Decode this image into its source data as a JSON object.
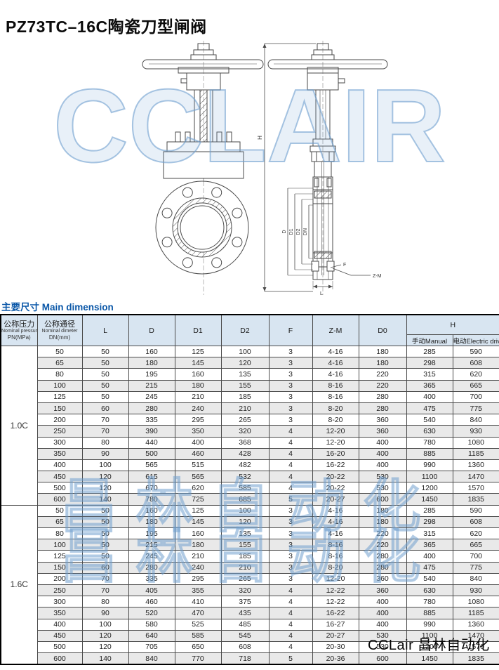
{
  "page": {
    "title": "PZ73TC–16C陶瓷刀型闸阀"
  },
  "watermarks": {
    "drawing": "CCLAIR",
    "table_line": "昌林自动化",
    "corner": "CCLair 昌林自动化"
  },
  "section": {
    "title_zh": "主要尺寸",
    "title_en": "Main dimension"
  },
  "drawing": {
    "labels": {
      "h": "H",
      "d": "D",
      "d1": "D1",
      "d2": "D2",
      "dn": "DN",
      "f": "F",
      "zm": "Z-M",
      "l": "L"
    }
  },
  "table": {
    "headers": {
      "pn_zh": "公称压力",
      "pn_en": "Nominal pressure",
      "pn_unit": "PN(MPa)",
      "dn_zh": "公称通径",
      "dn_en": "Nominal dimeter",
      "dn_unit": "DN(mm)",
      "l": "L",
      "d": "D",
      "d1": "D1",
      "d2": "D2",
      "f": "F",
      "zm": "Z-M",
      "d0": "D0",
      "h": "H",
      "h_manual": "手动Manual",
      "h_electric": "电动Electric driving"
    },
    "groups": [
      {
        "pn": "1.0C",
        "rows": [
          [
            "50",
            "50",
            "160",
            "125",
            "100",
            "3",
            "4-16",
            "180",
            "285",
            "590"
          ],
          [
            "65",
            "50",
            "180",
            "145",
            "120",
            "3",
            "4-16",
            "180",
            "298",
            "608"
          ],
          [
            "80",
            "50",
            "195",
            "160",
            "135",
            "3",
            "4-16",
            "220",
            "315",
            "620"
          ],
          [
            "100",
            "50",
            "215",
            "180",
            "155",
            "3",
            "8-16",
            "220",
            "365",
            "665"
          ],
          [
            "125",
            "50",
            "245",
            "210",
            "185",
            "3",
            "8-16",
            "280",
            "400",
            "700"
          ],
          [
            "150",
            "60",
            "280",
            "240",
            "210",
            "3",
            "8-20",
            "280",
            "475",
            "775"
          ],
          [
            "200",
            "70",
            "335",
            "295",
            "265",
            "3",
            "8-20",
            "360",
            "540",
            "840"
          ],
          [
            "250",
            "70",
            "390",
            "350",
            "320",
            "4",
            "12-20",
            "360",
            "630",
            "930"
          ],
          [
            "300",
            "80",
            "440",
            "400",
            "368",
            "4",
            "12-20",
            "400",
            "780",
            "1080"
          ],
          [
            "350",
            "90",
            "500",
            "460",
            "428",
            "4",
            "16-20",
            "400",
            "885",
            "1185"
          ],
          [
            "400",
            "100",
            "565",
            "515",
            "482",
            "4",
            "16-22",
            "400",
            "990",
            "1360"
          ],
          [
            "450",
            "120",
            "615",
            "565",
            "532",
            "4",
            "20-22",
            "530",
            "1100",
            "1470"
          ],
          [
            "500",
            "120",
            "670",
            "620",
            "585",
            "4",
            "20-22",
            "530",
            "1200",
            "1570"
          ],
          [
            "600",
            "140",
            "780",
            "725",
            "685",
            "5",
            "20-27",
            "600",
            "1450",
            "1835"
          ]
        ]
      },
      {
        "pn": "1.6C",
        "rows": [
          [
            "50",
            "50",
            "160",
            "125",
            "100",
            "3",
            "4-16",
            "180",
            "285",
            "590"
          ],
          [
            "65",
            "50",
            "180",
            "145",
            "120",
            "3",
            "4-16",
            "180",
            "298",
            "608"
          ],
          [
            "80",
            "50",
            "195",
            "160",
            "135",
            "3",
            "4-16",
            "220",
            "315",
            "620"
          ],
          [
            "100",
            "50",
            "215",
            "180",
            "155",
            "3",
            "8-16",
            "220",
            "365",
            "665"
          ],
          [
            "125",
            "50",
            "245",
            "210",
            "185",
            "3",
            "8-16",
            "280",
            "400",
            "700"
          ],
          [
            "150",
            "60",
            "280",
            "240",
            "210",
            "3",
            "8-20",
            "280",
            "475",
            "775"
          ],
          [
            "200",
            "70",
            "335",
            "295",
            "265",
            "3",
            "12-20",
            "360",
            "540",
            "840"
          ],
          [
            "250",
            "70",
            "405",
            "355",
            "320",
            "4",
            "12-22",
            "360",
            "630",
            "930"
          ],
          [
            "300",
            "80",
            "460",
            "410",
            "375",
            "4",
            "12-22",
            "400",
            "780",
            "1080"
          ],
          [
            "350",
            "90",
            "520",
            "470",
            "435",
            "4",
            "16-22",
            "400",
            "885",
            "1185"
          ],
          [
            "400",
            "100",
            "580",
            "525",
            "485",
            "4",
            "16-27",
            "400",
            "990",
            "1360"
          ],
          [
            "450",
            "120",
            "640",
            "585",
            "545",
            "4",
            "20-27",
            "530",
            "1100",
            "1470"
          ],
          [
            "500",
            "120",
            "705",
            "650",
            "608",
            "4",
            "20-30",
            "530",
            "1200",
            "1570"
          ],
          [
            "600",
            "140",
            "840",
            "770",
            "718",
            "5",
            "20-36",
            "600",
            "1450",
            "1835"
          ]
        ]
      }
    ]
  }
}
